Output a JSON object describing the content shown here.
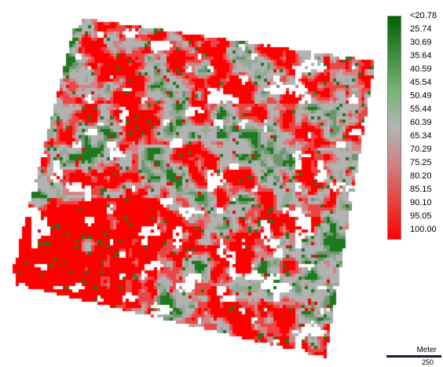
{
  "map": {
    "description_colors": {
      "low": "#006400",
      "mid": "#b4b4b4",
      "high": "#ff0000"
    }
  },
  "legend": {
    "labels": [
      "<20.78",
      "25.74",
      "30.69",
      "35.64",
      "40.59",
      "45.54",
      "50.49",
      "55.44",
      "60.39",
      "65.34",
      "70.29",
      "75.25",
      "80.20",
      "85.15",
      "90.10",
      "95.05",
      "100.00"
    ],
    "gradient_stops": [
      "#006400",
      "#3c8c3c",
      "#78b478",
      "#b4b4b4",
      "#d08080",
      "#e84040",
      "#ff0000"
    ]
  },
  "scale_bar": {
    "unit": "Meter",
    "value": "250"
  }
}
